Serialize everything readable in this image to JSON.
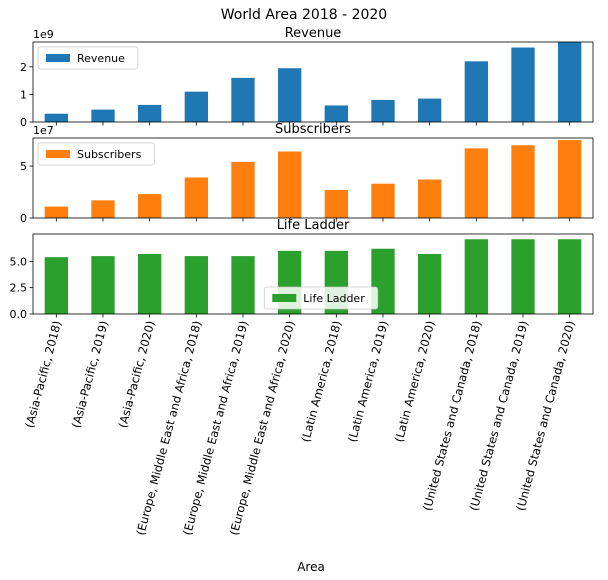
{
  "figure": {
    "title": "World Area 2018 - 2020",
    "xlabel": "Area"
  },
  "chart_data": {
    "type": "bar",
    "categories": [
      "(Asia-Pacific,  2018)",
      "(Asia-Pacific,  2019)",
      "(Asia-Pacific,  2020)",
      "(Europe,  Middle East and Africa,  2018)",
      "(Europe,  Middle East and Africa,  2019)",
      "(Europe,  Middle East and Africa,  2020)",
      "(Latin America,  2018)",
      "(Latin America,  2019)",
      "(Latin America,  2020)",
      "(United States and Canada,  2018)",
      "(United States and Canada,  2019)",
      "(United States and Canada,  2020)"
    ],
    "panels": [
      {
        "title": "Revenue",
        "legend": "Revenue",
        "legend_loc": "upper left",
        "color": "#1f77b4",
        "exponent": "1e9",
        "scale": 1000000000,
        "ylim": [
          0,
          2.9
        ],
        "yticks": [
          0,
          1,
          2
        ],
        "ytick_labels": [
          "0",
          "1",
          "2"
        ],
        "values": [
          0.3,
          0.45,
          0.62,
          1.1,
          1.6,
          1.95,
          0.6,
          0.8,
          0.85,
          2.2,
          2.7,
          2.9
        ]
      },
      {
        "title": "Subscribers",
        "legend": "Subscribers",
        "legend_loc": "upper left",
        "color": "#ff7f0e",
        "exponent": "1e7",
        "scale": 10000000,
        "ylim": [
          0,
          7.7
        ],
        "yticks": [
          0,
          5
        ],
        "ytick_labels": [
          "0",
          "5"
        ],
        "values": [
          1.1,
          1.7,
          2.3,
          3.9,
          5.4,
          6.4,
          2.7,
          3.3,
          3.7,
          6.7,
          7.0,
          7.5
        ]
      },
      {
        "title": "Life Ladder",
        "legend": "Life Ladder",
        "legend_loc": "lower center",
        "color": "#2ca02c",
        "exponent": "",
        "scale": 1,
        "ylim": [
          0,
          7.6
        ],
        "yticks": [
          0,
          2.5,
          5.0
        ],
        "ytick_labels": [
          "0.0",
          "2.5",
          "5.0"
        ],
        "values": [
          5.4,
          5.5,
          5.7,
          5.5,
          5.5,
          6.0,
          6.0,
          6.2,
          5.7,
          7.1,
          7.1,
          7.1
        ]
      }
    ]
  }
}
